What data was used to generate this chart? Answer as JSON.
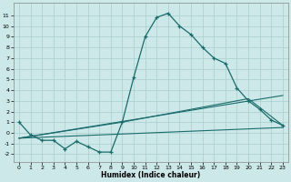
{
  "xlabel": "Humidex (Indice chaleur)",
  "bg_color": "#cce8e8",
  "grid_color": "#aacece",
  "line_color": "#1a6b6b",
  "xlim": [
    -0.5,
    23.5
  ],
  "ylim": [
    -2.7,
    12.2
  ],
  "yticks": [
    -2,
    -1,
    0,
    1,
    2,
    3,
    4,
    5,
    6,
    7,
    8,
    9,
    10,
    11
  ],
  "xticks": [
    0,
    1,
    2,
    3,
    4,
    5,
    6,
    7,
    8,
    9,
    10,
    11,
    12,
    13,
    14,
    15,
    16,
    17,
    18,
    19,
    20,
    21,
    22,
    23
  ],
  "series1_x": [
    0,
    1,
    2,
    3,
    4,
    5,
    6,
    7,
    8,
    9,
    10,
    11,
    12,
    13,
    14,
    15,
    16,
    17,
    18,
    19,
    20,
    21,
    22,
    23
  ],
  "series1_y": [
    1.0,
    -0.2,
    -0.7,
    -0.7,
    -1.5,
    -0.8,
    -1.3,
    -1.8,
    -1.8,
    1.0,
    5.2,
    9.0,
    10.8,
    11.2,
    10.0,
    9.2,
    8.0,
    7.0,
    6.5,
    4.2,
    3.0,
    2.2,
    1.2,
    0.7
  ],
  "series2_x": [
    0,
    23
  ],
  "series2_y": [
    -0.5,
    0.5
  ],
  "series3_x": [
    0,
    9,
    20,
    23
  ],
  "series3_y": [
    -0.5,
    1.0,
    3.2,
    0.7
  ],
  "series4_x": [
    0,
    23
  ],
  "series4_y": [
    -0.5,
    3.5
  ]
}
